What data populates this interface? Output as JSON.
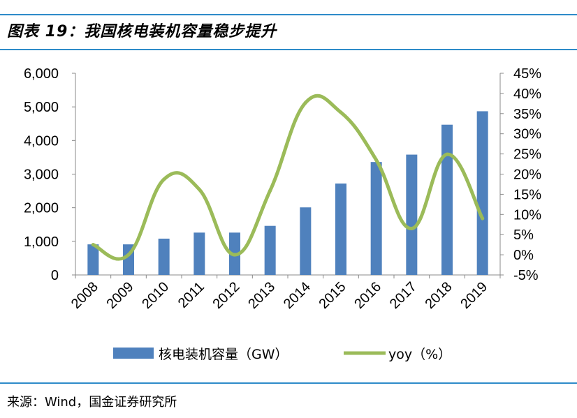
{
  "title": "图表 19：我国核电装机容量稳步提升",
  "source": "来源：Wind，国金证券研究所",
  "colors": {
    "bar": "#4f81bd",
    "line": "#9bbb59",
    "rule": "#2e8bc9"
  },
  "chart_data": {
    "type": "bar",
    "categories": [
      "2008",
      "2009",
      "2010",
      "2011",
      "2012",
      "2013",
      "2014",
      "2015",
      "2016",
      "2017",
      "2018",
      "2019"
    ],
    "series": [
      {
        "name": "核电装机容量（GW）",
        "type": "bar",
        "axis": "left",
        "values": [
          910,
          910,
          1080,
          1260,
          1260,
          1460,
          2010,
          2720,
          3360,
          3580,
          4470,
          4870
        ]
      },
      {
        "name": "yoy（%）",
        "type": "line",
        "axis": "right",
        "values": [
          2.5,
          0.0,
          18.7,
          16.2,
          0.0,
          15.9,
          37.7,
          35.3,
          23.5,
          6.5,
          24.9,
          9.0
        ]
      }
    ],
    "y_left": {
      "ylim": [
        0,
        6000
      ],
      "ticks": [
        "0",
        "1,000",
        "2,000",
        "3,000",
        "4,000",
        "5,000",
        "6,000"
      ]
    },
    "y_right": {
      "ylim": [
        -5,
        45
      ],
      "ticks": [
        "-5%",
        "0%",
        "5%",
        "10%",
        "15%",
        "20%",
        "25%",
        "30%",
        "35%",
        "40%",
        "45%"
      ]
    },
    "legend": "bottom"
  }
}
